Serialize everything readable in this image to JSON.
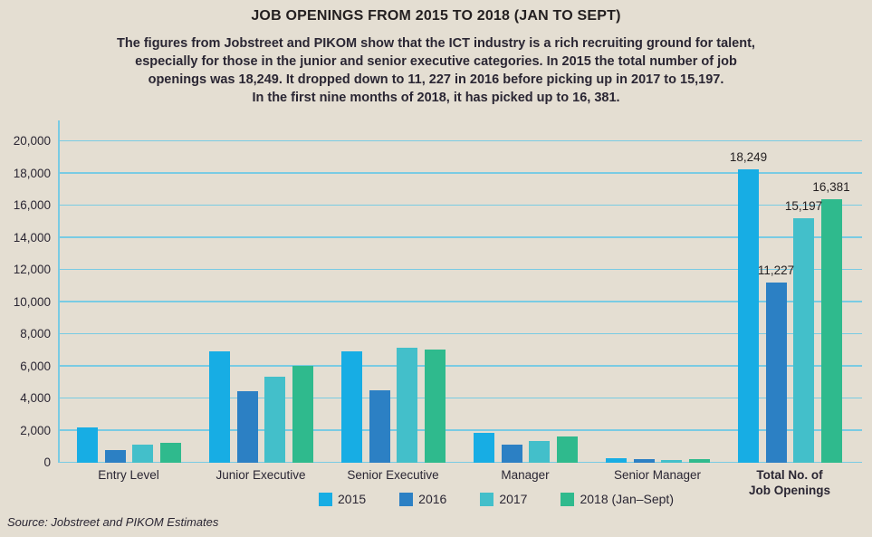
{
  "title": "JOB OPENINGS FROM 2015 TO 2018 (JAN TO SEPT)",
  "subtitle_lines": [
    "The figures from Jobstreet and PIKOM show that the ICT industry is a rich recruiting ground for talent,",
    "especially for those in the junior and senior executive categories. In 2015 the total number of job",
    "openings was 18,249. It dropped down to 11, 227 in 2016 before picking up in 2017 to 15,197.",
    "In the first nine months of 2018, it has picked up to 16, 381."
  ],
  "source": "Source: Jobstreet and PIKOM Estimates",
  "colors": {
    "background": "#e4ded2",
    "gridline": "#79cbe3",
    "text": "#231f20"
  },
  "chart_data": {
    "type": "bar",
    "title": "JOB OPENINGS FROM 2015 TO 2018 (JAN TO SEPT)",
    "xlabel": "",
    "ylabel": "",
    "ylim": [
      0,
      20000
    ],
    "ytick_step": 2000,
    "ytick_labels": [
      "0",
      "2,000",
      "4,000",
      "6,000",
      "8,000",
      "10,000",
      "12,000",
      "14,000",
      "16,000",
      "18,000",
      "20,000"
    ],
    "grid": "horizontal",
    "legend_position": "bottom",
    "categories": [
      {
        "lines": [
          "Entry Level"
        ],
        "bold": false
      },
      {
        "lines": [
          "Junior Executive"
        ],
        "bold": false
      },
      {
        "lines": [
          "Senior Executive"
        ],
        "bold": false
      },
      {
        "lines": [
          "Manager"
        ],
        "bold": false
      },
      {
        "lines": [
          "Senior Manager"
        ],
        "bold": false
      },
      {
        "lines": [
          "Total No. of",
          "Job Openings"
        ],
        "bold": true
      }
    ],
    "series": [
      {
        "name": "2015",
        "color": "#17ade4",
        "values": [
          2200,
          6950,
          6950,
          1850,
          300,
          18249
        ]
      },
      {
        "name": "2016",
        "color": "#2c80c4",
        "values": [
          800,
          4450,
          4500,
          1100,
          200,
          11227
        ]
      },
      {
        "name": "2017",
        "color": "#43bfca",
        "values": [
          1150,
          5350,
          7150,
          1350,
          180,
          15197
        ]
      },
      {
        "name": "2018 (Jan–Sept)",
        "color": "#2fba8d",
        "values": [
          1250,
          6050,
          7050,
          1650,
          250,
          16381
        ]
      }
    ],
    "value_labels": {
      "category_index": 5,
      "labels": [
        "18,249",
        "11,227",
        "15,197",
        "16,381"
      ]
    }
  }
}
